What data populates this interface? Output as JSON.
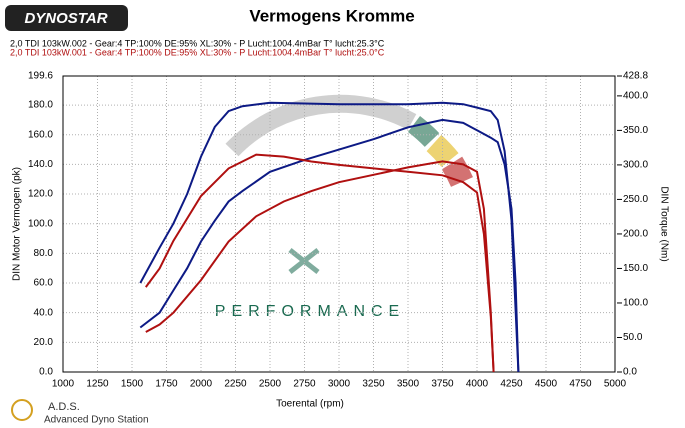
{
  "chart_data": {
    "type": "line",
    "logo": "DYNOSTAR",
    "title": "Vermogens Kromme",
    "x_label": "Toerental (rpm)",
    "y_label": "DIN Motor Vermogen (pk)",
    "y2_label": "DIN Torque (Nm)",
    "annotations": [
      "PERFORMANCE"
    ],
    "footer": [
      "A.D.S.",
      "Advanced Dyno Station"
    ],
    "xlim": [
      1000,
      5000
    ],
    "xticks": [
      1000,
      1250,
      1500,
      1750,
      2000,
      2250,
      2500,
      2750,
      3000,
      3250,
      3500,
      3750,
      4000,
      4250,
      4500,
      4750,
      5000
    ],
    "ylim": [
      0,
      199.6
    ],
    "yticks": [
      {
        "value": 0,
        "label": "0.0"
      },
      {
        "value": 20,
        "label": "20.0"
      },
      {
        "value": 40,
        "label": "40.0"
      },
      {
        "value": 60,
        "label": "60.0"
      },
      {
        "value": 80,
        "label": "80.0"
      },
      {
        "value": 100,
        "label": "100.0"
      },
      {
        "value": 120,
        "label": "120.0"
      },
      {
        "value": 140,
        "label": "140.0"
      },
      {
        "value": 160,
        "label": "160.0"
      },
      {
        "value": 180,
        "label": "180.0"
      },
      {
        "value": 199.6,
        "label": "199.6"
      }
    ],
    "y2lim": [
      0,
      428.8
    ],
    "y2ticks": [
      {
        "value": 0,
        "label": "0.0"
      },
      {
        "value": 50,
        "label": "50.0"
      },
      {
        "value": 100,
        "label": "100.0"
      },
      {
        "value": 150,
        "label": "150.0"
      },
      {
        "value": 200,
        "label": "200.0"
      },
      {
        "value": 250,
        "label": "250.0"
      },
      {
        "value": 300,
        "label": "300.0"
      },
      {
        "value": 350,
        "label": "350.0"
      },
      {
        "value": 400,
        "label": "400.0"
      },
      {
        "value": 428.8,
        "label": "428.8"
      }
    ],
    "grid": true,
    "series": [
      {
        "name": "2,0 TDI 103kW.002 - Gear:4 TP:100% DE:95% XL:30%     - P Lucht:1004.4mBar T° lucht:25.3°C",
        "color": "#0d1a85",
        "x": [
          1560,
          1700,
          1800,
          1900,
          2000,
          2100,
          2200,
          2300,
          2500,
          2750,
          3000,
          3250,
          3500,
          3750,
          3900,
          4000,
          4100,
          4150,
          4200,
          4250,
          4280,
          4300
        ],
        "power": [
          30,
          40,
          55,
          70,
          88,
          102,
          115,
          122,
          135,
          143,
          150,
          157,
          165,
          170,
          168,
          163,
          158,
          155,
          140,
          110,
          60,
          0
        ],
        "torque": [
          129,
          180,
          215,
          258,
          312,
          355,
          378,
          385,
          390,
          389,
          388,
          388,
          388,
          390,
          388,
          383,
          378,
          365,
          320,
          220,
          90,
          0
        ]
      },
      {
        "name": "2,0 TDI 103kW.001 - Gear:4 TP:100% DE:95% XL:30%     - P Lucht:1004.4mBar T° lucht:25.0°C",
        "color": "#b01010",
        "x": [
          1600,
          1700,
          1800,
          2000,
          2200,
          2400,
          2600,
          2800,
          3000,
          3250,
          3500,
          3750,
          3900,
          4000,
          4050,
          4100,
          4120
        ],
        "power": [
          27,
          32,
          40,
          62,
          88,
          105,
          115,
          122,
          128,
          133,
          138,
          142,
          140,
          135,
          110,
          40,
          0
        ],
        "torque": [
          123,
          150,
          190,
          255,
          295,
          315,
          312,
          305,
          300,
          295,
          290,
          285,
          275,
          260,
          200,
          80,
          0
        ]
      }
    ]
  }
}
